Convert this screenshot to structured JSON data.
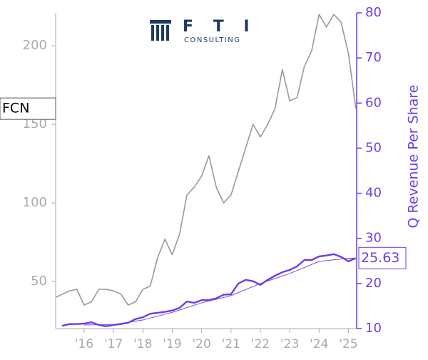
{
  "logo": {
    "name": "F T I",
    "tagline": "CONSULTING"
  },
  "chart_data": {
    "type": "line",
    "ticker": "FCN",
    "y2label": "Q Revenue Per Share",
    "xlim": [
      2015.03,
      2025.28
    ],
    "xticks": [
      {
        "value": 2016,
        "label": "'16"
      },
      {
        "value": 2017,
        "label": "'17"
      },
      {
        "value": 2018,
        "label": "'18"
      },
      {
        "value": 2019,
        "label": "'19"
      },
      {
        "value": 2020,
        "label": "'20"
      },
      {
        "value": 2021,
        "label": "'21"
      },
      {
        "value": 2022,
        "label": "'22"
      },
      {
        "value": 2023,
        "label": "'23"
      },
      {
        "value": 2024,
        "label": "'24"
      },
      {
        "value": 2025,
        "label": "'25"
      }
    ],
    "ylim": [
      20,
      221
    ],
    "yticks": [
      50,
      100,
      150,
      200
    ],
    "y2lim": [
      10,
      80
    ],
    "y2ticks": [
      10,
      20,
      30,
      40,
      50,
      60,
      70,
      80
    ],
    "series": [
      {
        "color": "#999999",
        "x": [
          2015.05,
          2015.5,
          2015.75,
          2016.0,
          2016.25,
          2016.5,
          2016.75,
          2017.0,
          2017.25,
          2017.5,
          2017.75,
          2018.0,
          2018.25,
          2018.5,
          2018.75,
          2019.0,
          2019.25,
          2019.5,
          2019.75,
          2020.0,
          2020.25,
          2020.5,
          2020.75,
          2021.0,
          2021.25,
          2021.5,
          2021.75,
          2022.0,
          2022.25,
          2022.5,
          2022.75,
          2023.0,
          2023.25,
          2023.5,
          2023.75,
          2024.0,
          2024.25,
          2024.5,
          2024.75,
          2025.0,
          2025.25
        ],
        "values": [
          40,
          44,
          45,
          35,
          37,
          45,
          45,
          44,
          42,
          35,
          37,
          45,
          47,
          65,
          77,
          67,
          80,
          105,
          110,
          117,
          130,
          110,
          100,
          105,
          120,
          135,
          150,
          142,
          150,
          160,
          185,
          165,
          167,
          187,
          197,
          220,
          212,
          220,
          215,
          195,
          160
        ]
      },
      {
        "color": "#6a3de8",
        "axis": "y2",
        "x": [
          2015.25,
          2015.5,
          2015.75,
          2016.0,
          2016.25,
          2016.5,
          2016.75,
          2017.0,
          2017.25,
          2017.5,
          2017.75,
          2018.0,
          2018.25,
          2018.5,
          2018.75,
          2019.0,
          2019.25,
          2019.5,
          2019.75,
          2020.0,
          2020.25,
          2020.5,
          2020.75,
          2021.0,
          2021.25,
          2021.5,
          2021.75,
          2022.0,
          2022.25,
          2022.5,
          2022.75,
          2023.0,
          2023.25,
          2023.5,
          2023.75,
          2024.0,
          2024.25,
          2024.5,
          2024.75,
          2025.0,
          2025.25
        ],
        "values": [
          10.6,
          11,
          11,
          11.1,
          11.4,
          10.8,
          10.5,
          10.8,
          11,
          11.3,
          12.1,
          12.5,
          13.3,
          13.5,
          13.7,
          14,
          14.6,
          16,
          15.7,
          16.3,
          16.3,
          16.7,
          17.5,
          17.6,
          20,
          20.8,
          20.5,
          19.7,
          20.8,
          21.7,
          22.5,
          23,
          23.8,
          25.2,
          25.2,
          26,
          26.2,
          26.5,
          25.9,
          24.9,
          25.63
        ],
        "value_labels": [
          null,
          null,
          null,
          null,
          null,
          null,
          null,
          null,
          null,
          null,
          null,
          null,
          null,
          null,
          null,
          null,
          null,
          null,
          null,
          null,
          null,
          null,
          null,
          null,
          null,
          null,
          null,
          null,
          null,
          null,
          null,
          null,
          null,
          null,
          null,
          null,
          null,
          null,
          null,
          null,
          "25.63"
        ]
      },
      {
        "color": "#6a3de8",
        "axis": "y2",
        "x": [
          2016.0,
          2017.0,
          2018.0,
          2019.0,
          2020.0,
          2021.0,
          2022.0,
          2023.0,
          2024.0,
          2025.0,
          2025.25
        ],
        "values": [
          10.8,
          10.9,
          11.9,
          13.6,
          15.7,
          17.3,
          20.0,
          22.2,
          24.9,
          25.6,
          25.6
        ]
      }
    ]
  }
}
